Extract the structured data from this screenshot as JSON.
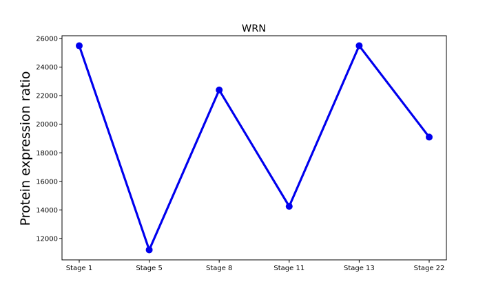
{
  "chart_data": {
    "type": "line",
    "title": "WRN",
    "xlabel": "",
    "ylabel": "Protein expression ratio",
    "categories": [
      "Stage 1",
      "Stage 5",
      "Stage 8",
      "Stage 11",
      "Stage 13",
      "Stage 22"
    ],
    "series": [
      {
        "values": [
          25500,
          11200,
          22400,
          14250,
          25500,
          19100
        ]
      }
    ],
    "ylim": [
      10500,
      26200
    ],
    "yticks": [
      12000,
      14000,
      16000,
      18000,
      20000,
      22000,
      24000,
      26000
    ],
    "grid": false,
    "line_color": "#0000ee",
    "marker": "circle"
  }
}
